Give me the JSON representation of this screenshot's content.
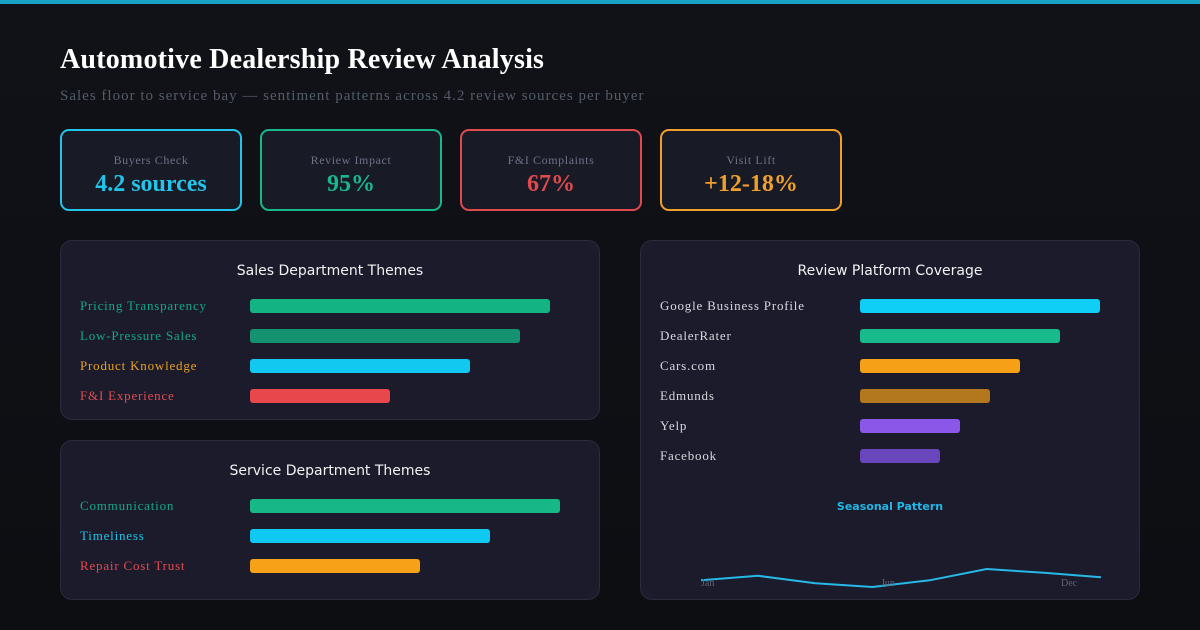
{
  "header": {
    "title": "Automotive Dealership Review Analysis",
    "subtitle": "Sales floor to service bay — sentiment patterns across 4.2 review sources per buyer"
  },
  "kpis": [
    {
      "label": "Buyers Check",
      "value": "4.2 sources",
      "color": "#22c4ea"
    },
    {
      "label": "Review Impact",
      "value": "95%",
      "color": "#19b88a"
    },
    {
      "label": "F&I Complaints",
      "value": "67%",
      "color": "#e04a4f"
    },
    {
      "label": "Visit Lift",
      "value": "+12-18%",
      "color": "#f0a02a"
    }
  ],
  "sales": {
    "title": "Sales Department Themes",
    "items": [
      {
        "label": "Pricing Transparency",
        "label_color": "#14a985",
        "bar_color": "#13b384",
        "value": 300
      },
      {
        "label": "Low-Pressure Sales",
        "label_color": "#14a985",
        "bar_color": "#15926f",
        "value": 270
      },
      {
        "label": "Product Knowledge",
        "label_color": "#e8a023",
        "bar_color": "#11c9f0",
        "value": 220
      },
      {
        "label": "F&I Experience",
        "label_color": "#e14b50",
        "bar_color": "#e8474c",
        "value": 140
      }
    ]
  },
  "service": {
    "title": "Service Department Themes",
    "items": [
      {
        "label": "Communication",
        "label_color": "#14a985",
        "bar_color": "#15b886",
        "value": 310
      },
      {
        "label": "Timeliness",
        "label_color": "#1ec4ea",
        "bar_color": "#10c9f2",
        "value": 240
      },
      {
        "label": "Repair Cost Trust",
        "label_color": "#e14b50",
        "bar_color": "#f6a117",
        "value": 170
      }
    ]
  },
  "platforms": {
    "title": "Review Platform Coverage",
    "items": [
      {
        "label": "Google Business Profile",
        "bar_color": "#10cff6",
        "value": 240
      },
      {
        "label": "DealerRater",
        "bar_color": "#18b98a",
        "value": 200
      },
      {
        "label": "Cars.com",
        "bar_color": "#f5a016",
        "value": 160
      },
      {
        "label": "Edmunds",
        "bar_color": "#b3781d",
        "value": 130
      },
      {
        "label": "Yelp",
        "bar_color": "#8a57e8",
        "value": 100
      },
      {
        "label": "Facebook",
        "bar_color": "#6a46bd",
        "value": 80
      }
    ]
  },
  "seasonal": {
    "title": "Seasonal Pattern",
    "tick_labels": [
      "Jan",
      "Jun",
      "Dec"
    ]
  },
  "chart_data": {
    "type": "line",
    "title": "Seasonal Pattern",
    "x_tick_labels": [
      "Jan",
      "Jun",
      "Dec"
    ],
    "points": 8,
    "values": [
      38,
      44,
      34,
      29,
      38,
      53,
      48,
      42
    ],
    "color": "#27b8e6",
    "grid": false
  }
}
